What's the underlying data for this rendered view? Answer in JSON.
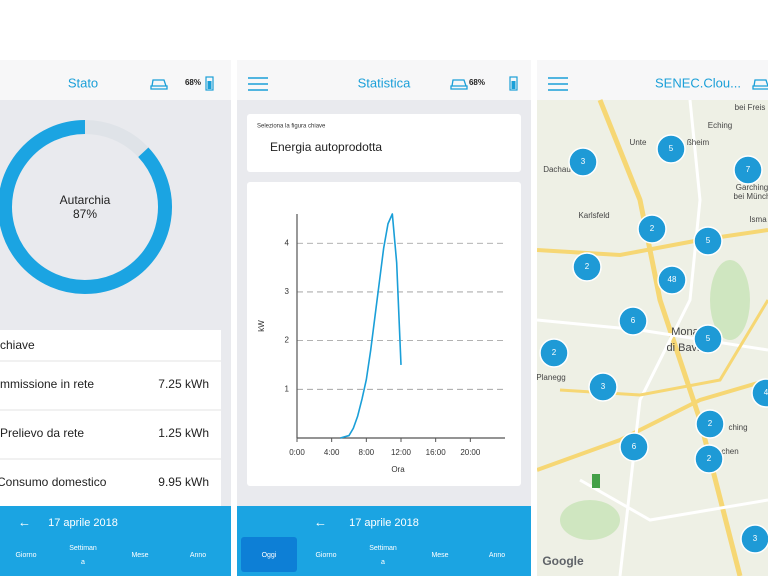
{
  "screens": [
    {
      "title": "Stato",
      "battery": "68%",
      "gauge": {
        "label": "Autarchia",
        "value": 87,
        "value_label": "87%"
      },
      "table": {
        "title": "chiave",
        "rows": [
          [
            "mmissione in rete",
            "7.25 kWh"
          ],
          [
            "Prelievo da rete",
            "1.25 kWh"
          ],
          [
            "Consumo domestico",
            "9.95 kWh"
          ]
        ]
      },
      "date": "17 aprile 2018",
      "tabs": [
        "Giorno",
        [
          "Settiman",
          "a"
        ],
        "Mese",
        "Anno"
      ]
    },
    {
      "title": "Statistica",
      "battery": "68%",
      "selector": {
        "caption": "Seleziona la figura chiave",
        "value": "Energia autoprodotta"
      },
      "date": "17 aprile 2018",
      "tabs": [
        "Oggi",
        "Giorno",
        [
          "Settiman",
          "a"
        ],
        "Mese",
        "Anno"
      ]
    },
    {
      "title": "SENEC.Clou...",
      "map": {
        "clusters": [
          3,
          5,
          7,
          2,
          5,
          2,
          48,
          6,
          5,
          2,
          3,
          4,
          2,
          6,
          2,
          3
        ],
        "places": [
          "bei Freis",
          "Eching",
          "Unte",
          "ßheim",
          "Dachau",
          "Karlsfeld",
          "Garching",
          "bei Münch",
          "Isma",
          "Mona",
          "di Bavi",
          "Planegg",
          "ching",
          "chen"
        ],
        "attribution": "Google"
      }
    }
  ],
  "chart_data": {
    "type": "line",
    "x_label": "Ora",
    "y_label": "kW",
    "x": [
      5,
      6,
      6.5,
      7,
      7.5,
      8,
      8.5,
      9,
      9.5,
      10,
      10.5,
      11,
      11.5,
      12
    ],
    "values": [
      0,
      0.05,
      0.2,
      0.45,
      0.8,
      1.2,
      1.8,
      2.5,
      3.2,
      3.9,
      4.4,
      4.6,
      3.6,
      1.5
    ],
    "color": "#1a9fd8",
    "xlim": [
      0,
      24
    ],
    "ylim": [
      0,
      4.6
    ],
    "xticks": [
      {
        "value": 0,
        "label": "0:00"
      },
      {
        "value": 4,
        "label": "4:00"
      },
      {
        "value": 8,
        "label": "8:00"
      },
      {
        "value": 12,
        "label": "12:00"
      },
      {
        "value": 16,
        "label": "16:00"
      },
      {
        "value": 20,
        "label": "20:00"
      }
    ],
    "yticks": [
      1,
      2,
      3,
      4
    ],
    "grid": true
  }
}
